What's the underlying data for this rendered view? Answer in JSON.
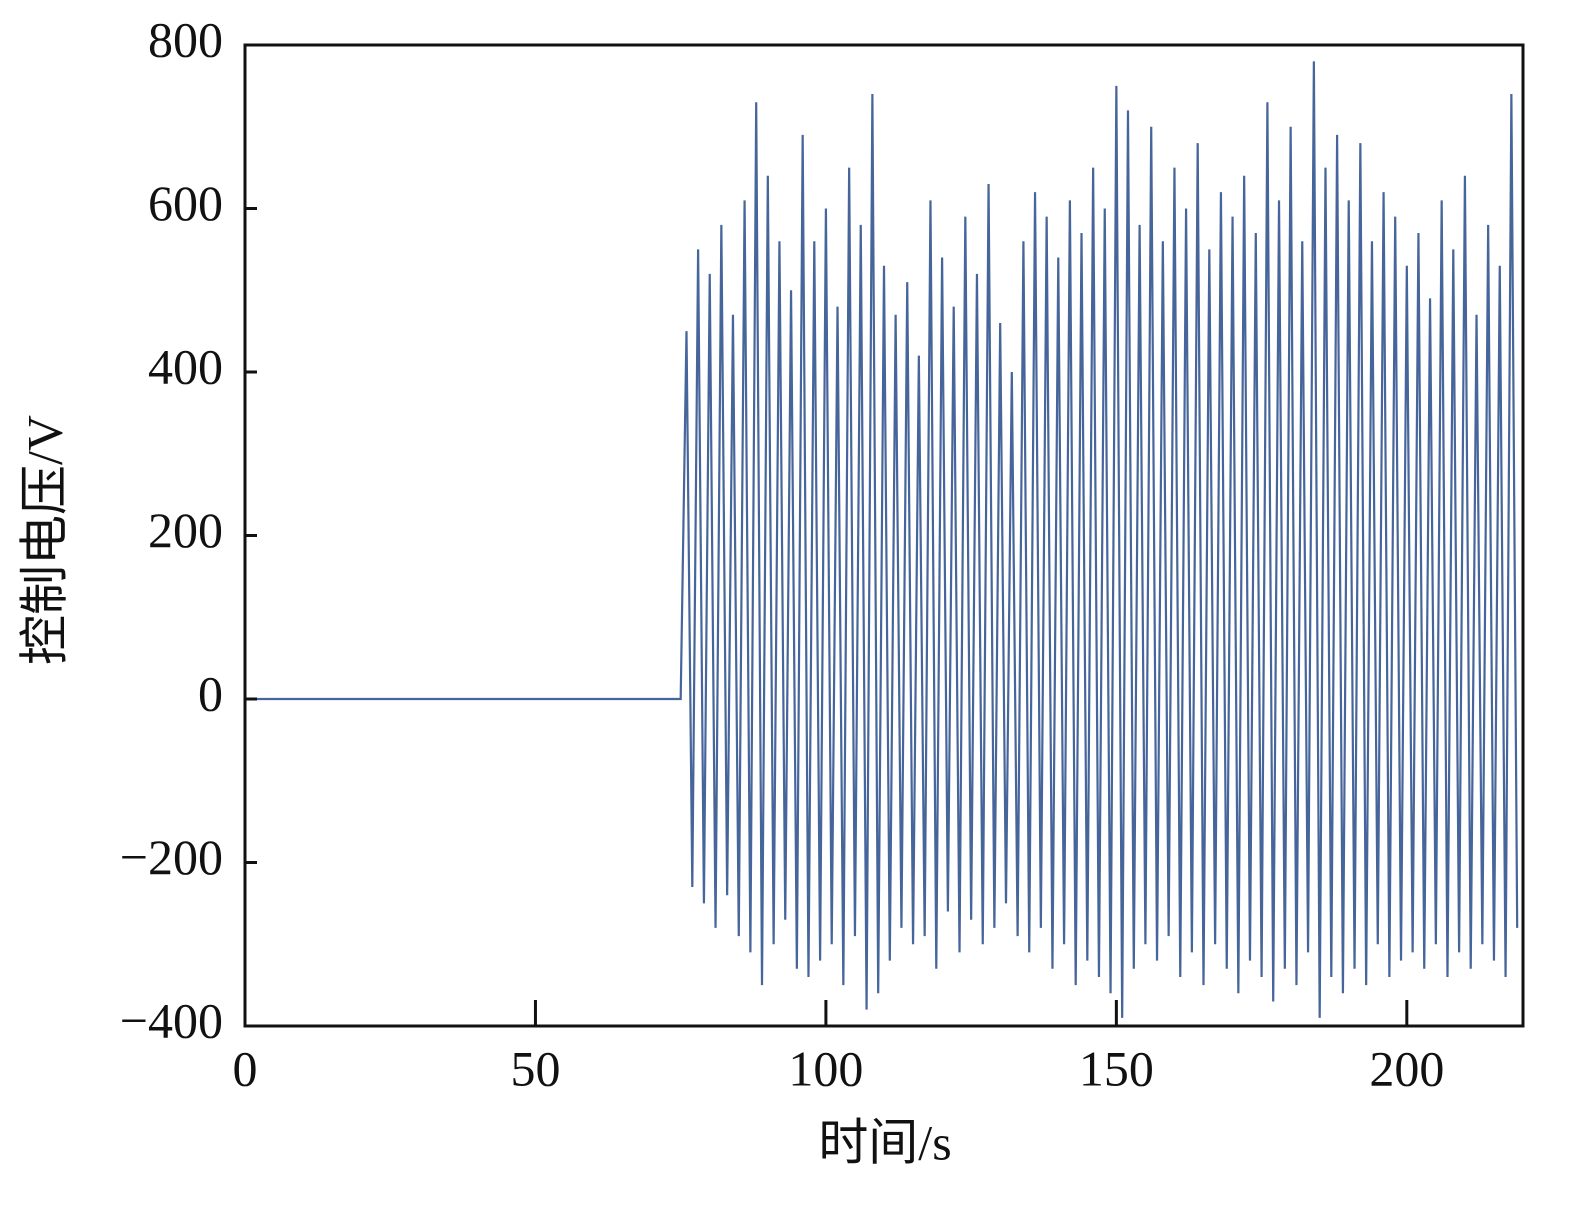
{
  "chart_data": {
    "type": "line",
    "xlabel": "时间/s",
    "ylabel": "控制电压/V",
    "color": "#46659a",
    "xlim": [
      0,
      220
    ],
    "ylim": [
      -400,
      800
    ],
    "xticks": [
      0,
      50,
      100,
      150,
      200
    ],
    "yticks": [
      {
        "value": -400,
        "label": "−400"
      },
      {
        "value": -200,
        "label": "−200"
      },
      0,
      200,
      400,
      600,
      800
    ],
    "x": [
      0,
      75,
      76,
      77,
      78,
      79,
      80,
      81,
      82,
      83,
      84,
      85,
      86,
      87,
      88,
      89,
      90,
      91,
      92,
      93,
      94,
      95,
      96,
      97,
      98,
      99,
      100,
      101,
      102,
      103,
      104,
      105,
      106,
      107,
      108,
      109,
      110,
      111,
      112,
      113,
      114,
      115,
      116,
      117,
      118,
      119,
      120,
      121,
      122,
      123,
      124,
      125,
      126,
      127,
      128,
      129,
      130,
      131,
      132,
      133,
      134,
      135,
      136,
      137,
      138,
      139,
      140,
      141,
      142,
      143,
      144,
      145,
      146,
      147,
      148,
      149,
      150,
      151,
      152,
      153,
      154,
      155,
      156,
      157,
      158,
      159,
      160,
      161,
      162,
      163,
      164,
      165,
      166,
      167,
      168,
      169,
      170,
      171,
      172,
      173,
      174,
      175,
      176,
      177,
      178,
      179,
      180,
      181,
      182,
      183,
      184,
      185,
      186,
      187,
      188,
      189,
      190,
      191,
      192,
      193,
      194,
      195,
      196,
      197,
      198,
      199,
      200,
      201,
      202,
      203,
      204,
      205,
      206,
      207,
      208,
      209,
      210,
      211,
      212,
      213,
      214,
      215,
      216,
      217,
      218,
      219
    ],
    "values": [
      0,
      0,
      450,
      -230,
      550,
      -250,
      520,
      -280,
      580,
      -240,
      470,
      -290,
      610,
      -310,
      730,
      -350,
      640,
      -300,
      560,
      -270,
      500,
      -330,
      690,
      -340,
      560,
      -320,
      600,
      -300,
      480,
      -350,
      650,
      -290,
      580,
      -380,
      740,
      -360,
      530,
      -320,
      470,
      -280,
      510,
      -300,
      420,
      -290,
      610,
      -330,
      540,
      -260,
      480,
      -310,
      590,
      -270,
      520,
      -300,
      630,
      -280,
      460,
      -250,
      400,
      -290,
      560,
      -310,
      620,
      -280,
      590,
      -330,
      540,
      -300,
      610,
      -350,
      570,
      -320,
      650,
      -340,
      600,
      -360,
      750,
      -390,
      720,
      -330,
      580,
      -300,
      700,
      -320,
      560,
      -290,
      650,
      -340,
      600,
      -310,
      680,
      -350,
      550,
      -300,
      620,
      -330,
      590,
      -360,
      640,
      -320,
      570,
      -340,
      730,
      -370,
      610,
      -330,
      700,
      -350,
      560,
      -310,
      780,
      -390,
      650,
      -340,
      690,
      -360,
      610,
      -330,
      680,
      -350,
      560,
      -300,
      620,
      -340,
      590,
      -320,
      530,
      -310,
      570,
      -330,
      490,
      -300,
      610,
      -340,
      550,
      -310,
      640,
      -330,
      470,
      -300,
      580,
      -320,
      530,
      -340,
      740,
      -280
    ]
  }
}
